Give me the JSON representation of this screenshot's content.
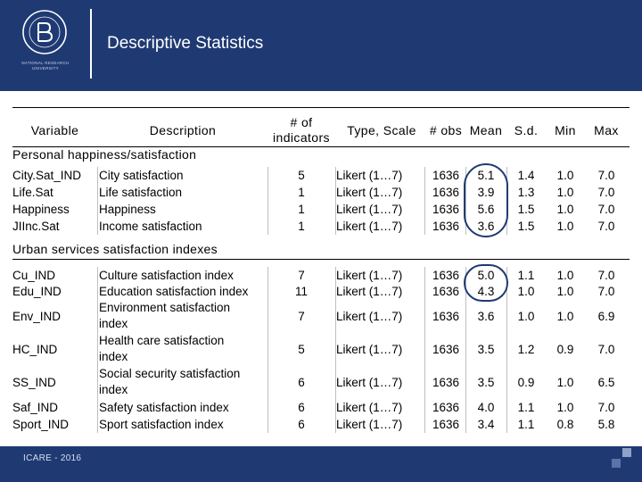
{
  "title": "Descriptive Statistics",
  "logo": {
    "subtext": "NATIONAL RESEARCH UNIVERSITY"
  },
  "footer": "ICARE - 2016",
  "headers": {
    "variable": "Variable",
    "description": "Description",
    "num_indicators_l1": "# of",
    "num_indicators_l2": "indicators",
    "type_scale": "Type, Scale",
    "obs": "# obs",
    "mean": "Mean",
    "sd": "S.d.",
    "min": "Min",
    "max": "Max"
  },
  "sections": [
    {
      "title": "Personal happiness/satisfaction",
      "rows": [
        {
          "variable": "City.Sat_IND",
          "desc1": "City satisfaction",
          "desc2": "",
          "n": "5",
          "type": "Likert (1…7)",
          "obs": "1636",
          "mean": "5.1",
          "sd": "1.4",
          "min": "1.0",
          "max": "7.0"
        },
        {
          "variable": "Life.Sat",
          "desc1": "Life satisfaction",
          "desc2": "",
          "n": "1",
          "type": "Likert (1…7)",
          "obs": "1636",
          "mean": "3.9",
          "sd": "1.3",
          "min": "1.0",
          "max": "7.0"
        },
        {
          "variable": "Happiness",
          "desc1": "Happiness",
          "desc2": "",
          "n": "1",
          "type": "Likert (1…7)",
          "obs": "1636",
          "mean": "5.6",
          "sd": "1.5",
          "min": "1.0",
          "max": "7.0"
        },
        {
          "variable": "JIInc.Sat",
          "desc1": "Income satisfaction",
          "desc2": "",
          "n": "1",
          "type": "Likert (1…7)",
          "obs": "1636",
          "mean": "3.6",
          "sd": "1.5",
          "min": "1.0",
          "max": "7.0"
        }
      ]
    },
    {
      "title": "Urban services satisfaction indexes",
      "rows": [
        {
          "variable": "Cu_IND",
          "desc1": "Culture satisfaction index",
          "desc2": "",
          "n": "7",
          "type": "Likert (1…7)",
          "obs": "1636",
          "mean": "5.0",
          "sd": "1.1",
          "min": "1.0",
          "max": "7.0"
        },
        {
          "variable": "Edu_IND",
          "desc1": "Education satisfaction index",
          "desc2": "",
          "n": "11",
          "type": "Likert (1…7)",
          "obs": "1636",
          "mean": "4.3",
          "sd": "1.0",
          "min": "1.0",
          "max": "7.0"
        },
        {
          "variable": "Env_IND",
          "desc1": "Environment satisfaction",
          "desc2": "index",
          "n": "7",
          "type": "Likert (1…7)",
          "obs": "1636",
          "mean": "3.6",
          "sd": "1.0",
          "min": "1.0",
          "max": "6.9"
        },
        {
          "variable": "HC_IND",
          "desc1": "Health care satisfaction",
          "desc2": "index",
          "n": "5",
          "type": "Likert (1…7)",
          "obs": "1636",
          "mean": "3.5",
          "sd": "1.2",
          "min": "0.9",
          "max": "7.0"
        },
        {
          "variable": "SS_IND",
          "desc1": "Social security satisfaction",
          "desc2": "index",
          "n": "6",
          "type": "Likert (1…7)",
          "obs": "1636",
          "mean": "3.5",
          "sd": "0.9",
          "min": "1.0",
          "max": "6.5"
        },
        {
          "variable": "Saf_IND",
          "desc1": "Safety satisfaction index",
          "desc2": "",
          "n": "6",
          "type": "Likert (1…7)",
          "obs": "1636",
          "mean": "4.0",
          "sd": "1.1",
          "min": "1.0",
          "max": "7.0"
        },
        {
          "variable": "Sport_IND",
          "desc1": "Sport satisfaction index",
          "desc2": "",
          "n": "6",
          "type": "Likert (1…7)",
          "obs": "1636",
          "mean": "3.4",
          "sd": "1.1",
          "min": "0.8",
          "max": "5.8"
        }
      ]
    }
  ],
  "colors": {
    "brand": "#1f3a73",
    "highlight_ring": "#1f3a73"
  }
}
